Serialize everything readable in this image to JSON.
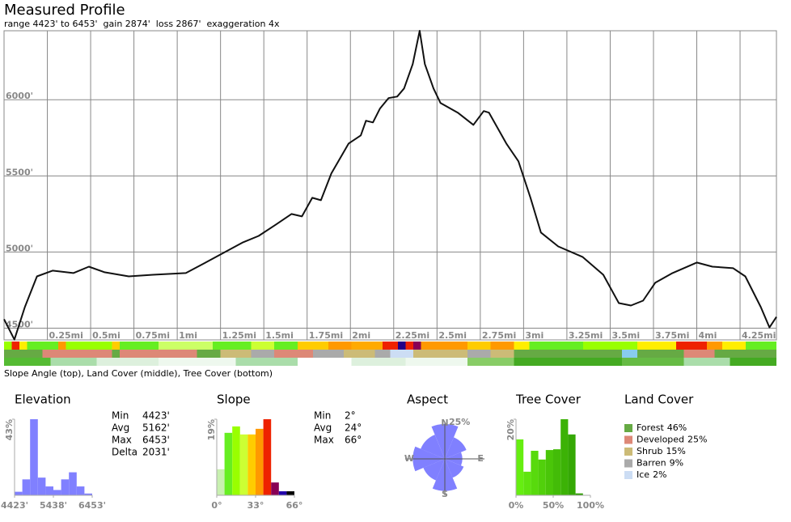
{
  "header": {
    "title": "Measured Profile",
    "subtitle": "range 4423' to 6453'  gain 2874'  loss 2867'  exaggeration 4x"
  },
  "strips_caption": "Slope Angle (top), Land Cover (middle), Tree Cover (bottom)",
  "chart_data": [
    {
      "type": "line",
      "x": [
        0,
        0.06,
        0.12,
        0.19,
        0.28,
        0.4,
        0.49,
        0.58,
        0.72,
        0.86,
        1.05,
        1.19,
        1.38,
        1.47,
        1.57,
        1.66,
        1.72,
        1.78,
        1.83,
        1.89,
        1.99,
        2.06,
        2.09,
        2.13,
        2.17,
        2.22,
        2.27,
        2.31,
        2.36,
        2.4,
        2.43,
        2.48,
        2.52,
        2.62,
        2.71,
        2.77,
        2.8,
        2.9,
        2.97,
        3.04,
        3.1,
        3.2,
        3.34,
        3.46,
        3.55,
        3.62,
        3.69,
        3.76,
        3.86,
        4.0,
        4.09,
        4.21,
        4.28,
        4.37,
        4.42,
        4.46
      ],
      "values": [
        4559,
        4425,
        4638,
        4840,
        4878,
        4862,
        4904,
        4867,
        4840,
        4851,
        4862,
        4947,
        5064,
        5106,
        5181,
        5250,
        5234,
        5356,
        5340,
        5516,
        5713,
        5766,
        5862,
        5851,
        5941,
        6011,
        6021,
        6074,
        6234,
        6453,
        6234,
        6074,
        5979,
        5915,
        5835,
        5926,
        5915,
        5713,
        5596,
        5356,
        5128,
        5037,
        4968,
        4851,
        4665,
        4649,
        4681,
        4798,
        4862,
        4931,
        4904,
        4894,
        4840,
        4638,
        4505,
        4574
      ],
      "color": "#111111",
      "xlim": [
        0,
        4.46
      ],
      "ylim": [
        4423,
        6453
      ],
      "xticks": [
        {
          "value": 0.25,
          "label": "0.25mi"
        },
        {
          "value": 0.5,
          "label": "0.5mi"
        },
        {
          "value": 0.75,
          "label": "0.75mi"
        },
        {
          "value": 1,
          "label": "1mi"
        },
        {
          "value": 1.25,
          "label": "1.25mi"
        },
        {
          "value": 1.5,
          "label": "1.5mi"
        },
        {
          "value": 1.75,
          "label": "1.75mi"
        },
        {
          "value": 2,
          "label": "2mi"
        },
        {
          "value": 2.25,
          "label": "2.25mi"
        },
        {
          "value": 2.5,
          "label": "2.5mi"
        },
        {
          "value": 2.75,
          "label": "2.75mi"
        },
        {
          "value": 3,
          "label": "3mi"
        },
        {
          "value": 3.25,
          "label": "3.25mi"
        },
        {
          "value": 3.5,
          "label": "3.5mi"
        },
        {
          "value": 3.75,
          "label": "3.75mi"
        },
        {
          "value": 4,
          "label": "4mi"
        },
        {
          "value": 4.25,
          "label": "4.25mi"
        }
      ],
      "yticks": [
        {
          "value": 4500,
          "label": "4500'"
        },
        {
          "value": 5000,
          "label": "5000'"
        },
        {
          "value": 5500,
          "label": "5500'"
        },
        {
          "value": 6000,
          "label": "6000'"
        }
      ],
      "grid": true
    },
    {
      "type": "histogram",
      "title": "Elevation",
      "bins": [
        4423,
        4626,
        4829,
        5032,
        5235,
        5438,
        5641,
        5844,
        6047,
        6250,
        6453
      ],
      "values": [
        2,
        9,
        43,
        10,
        5,
        3,
        9,
        13,
        5,
        1
      ],
      "color": "#8080ff",
      "xlim": [
        4423,
        6453
      ],
      "ylim": [
        0,
        43
      ],
      "xticks": [
        {
          "value": 4423,
          "label": "4423'"
        },
        {
          "value": 5438,
          "label": "5438'"
        },
        {
          "value": 6453,
          "label": "6453'"
        }
      ],
      "yticks": [
        {
          "value": 43,
          "label": "43%"
        }
      ],
      "stats": [
        {
          "label": "Min",
          "value": "4423'"
        },
        {
          "label": "Avg",
          "value": "5162'"
        },
        {
          "label": "Max",
          "value": "6453'"
        },
        {
          "label": "Delta",
          "value": "2031'"
        }
      ]
    },
    {
      "type": "histogram",
      "title": "Slope",
      "bins": [
        0,
        6.6,
        13.2,
        19.8,
        26.4,
        33,
        39.6,
        46.2,
        52.8,
        59.4,
        66
      ],
      "values": [
        6.5,
        15.6,
        17.2,
        15.2,
        15.2,
        16.6,
        19,
        3.2,
        1,
        1
      ],
      "colors": [
        "#c8f0b0",
        "#66ee22",
        "#99ff00",
        "#ccff33",
        "#ffcc00",
        "#ff9900",
        "#ee2200",
        "#880055",
        "#2200aa",
        "#000000"
      ],
      "xlim": [
        0,
        66
      ],
      "ylim": [
        0,
        19
      ],
      "xticks": [
        {
          "value": 0,
          "label": "0°"
        },
        {
          "value": 33,
          "label": "33°"
        },
        {
          "value": 66,
          "label": "66°"
        }
      ],
      "yticks": [
        {
          "value": 19,
          "label": "19%"
        }
      ],
      "stats": [
        {
          "label": "Min",
          "value": "2°"
        },
        {
          "label": "Avg",
          "value": "24°"
        },
        {
          "label": "Max",
          "value": "66°"
        }
      ]
    },
    {
      "type": "rose",
      "title": "Aspect",
      "categories": [
        "N",
        null,
        "E",
        null,
        "S",
        null,
        "W",
        null
      ],
      "values": [
        24,
        16,
        12,
        14,
        22,
        16,
        22,
        18
      ],
      "color": "#8080ff",
      "rlim": [
        0,
        25
      ],
      "rticks": [
        {
          "value": 25,
          "label": "25%"
        }
      ]
    },
    {
      "type": "histogram",
      "title": "Tree Cover",
      "bins": [
        0,
        10,
        20,
        30,
        40,
        50,
        60,
        70,
        80,
        90,
        100
      ],
      "values": [
        14.7,
        6.2,
        11.7,
        9.4,
        11.9,
        12.1,
        20,
        16,
        0.5,
        0
      ],
      "colors": [
        "#66ee11",
        "#5fe40f",
        "#58da0d",
        "#51d00b",
        "#4ac609",
        "#43bc08",
        "#3cb206",
        "#35a805",
        "#2e9e03",
        "#279402"
      ],
      "xlim": [
        0,
        100
      ],
      "ylim": [
        0,
        20
      ],
      "xticks": [
        {
          "value": 0,
          "label": "0%"
        },
        {
          "value": 50,
          "label": "50%"
        },
        {
          "value": 100,
          "label": "100%"
        }
      ],
      "yticks": [
        {
          "value": 20,
          "label": "20%"
        }
      ]
    }
  ],
  "land_cover": {
    "title": "Land Cover",
    "items": [
      {
        "name": "Forest",
        "share": "46%",
        "color": "#66aa44"
      },
      {
        "name": "Developed",
        "share": "25%",
        "color": "#dd8877"
      },
      {
        "name": "Shrub",
        "share": "15%",
        "color": "#ccbb77"
      },
      {
        "name": "Barren",
        "share": "9%",
        "color": "#aaaaaa"
      },
      {
        "name": "Ice",
        "share": "2%",
        "color": "#ccddf4"
      }
    ]
  }
}
